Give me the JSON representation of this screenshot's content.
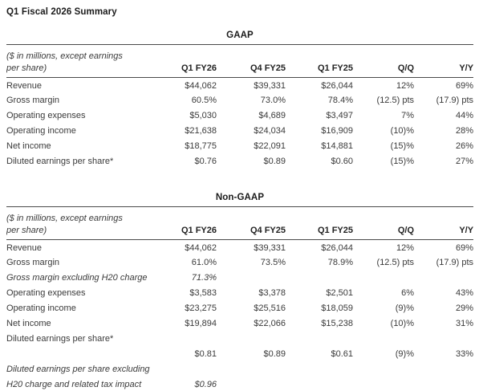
{
  "header": {
    "title": "Q1 Fiscal 2026 Summary"
  },
  "tables": [
    {
      "section": "GAAP",
      "note_line1": "($ in millions, except earnings",
      "note_line2": "per share)",
      "columns": [
        "Q1 FY26",
        "Q4 FY25",
        "Q1 FY25",
        "Q/Q",
        "Y/Y"
      ],
      "rows": [
        {
          "label": "Revenue",
          "values": [
            "$44,062",
            "$39,331",
            "$26,044",
            "12%",
            "69%"
          ]
        },
        {
          "label": "Gross margin",
          "values": [
            "60.5%",
            "73.0%",
            "78.4%",
            "(12.5) pts",
            "(17.9) pts"
          ]
        },
        {
          "label": "Operating expenses",
          "values": [
            "$5,030",
            "$4,689",
            "$3,497",
            "7%",
            "44%"
          ]
        },
        {
          "label": "Operating income",
          "values": [
            "$21,638",
            "$24,034",
            "$16,909",
            "(10)%",
            "28%"
          ]
        },
        {
          "label": "Net income",
          "values": [
            "$18,775",
            "$22,091",
            "$14,881",
            "(15)%",
            "26%"
          ]
        },
        {
          "label": "Diluted earnings per share*",
          "values": [
            "$0.76",
            "$0.89",
            "$0.60",
            "(15)%",
            "27%"
          ]
        }
      ]
    },
    {
      "section": "Non-GAAP",
      "note_line1": "($ in millions, except earnings",
      "note_line2": "per share)",
      "columns": [
        "Q1 FY26",
        "Q4 FY25",
        "Q1 FY25",
        "Q/Q",
        "Y/Y"
      ],
      "rows": [
        {
          "label": "Revenue",
          "values": [
            "$44,062",
            "$39,331",
            "$26,044",
            "12%",
            "69%"
          ]
        },
        {
          "label": "Gross margin",
          "values": [
            "61.0%",
            "73.5%",
            "78.9%",
            "(12.5) pts",
            "(17.9) pts"
          ]
        },
        {
          "label": "Gross margin excluding H20 charge",
          "values": [
            "71.3%",
            "",
            "",
            "",
            ""
          ]
        },
        {
          "label": "Operating expenses",
          "values": [
            "$3,583",
            "$3,378",
            "$2,501",
            "6%",
            "43%"
          ]
        },
        {
          "label": "Operating income",
          "values": [
            "$23,275",
            "$25,516",
            "$18,059",
            "(9)%",
            "29%"
          ]
        },
        {
          "label": "Net income",
          "values": [
            "$19,894",
            "$22,066",
            "$15,238",
            "(10)%",
            "31%"
          ]
        },
        {
          "label": "Diluted earnings per share*",
          "values": [
            "",
            "",
            "",
            "",
            ""
          ]
        },
        {
          "label": "",
          "values": [
            "$0.81",
            "$0.89",
            "$0.61",
            "(9)%",
            "33%"
          ]
        },
        {
          "label": "Diluted earnings per share excluding",
          "values": [
            "",
            "",
            "",
            "",
            ""
          ]
        },
        {
          "label": "H20 charge and related tax impact",
          "values": [
            "$0.96",
            "",
            "",
            "",
            ""
          ]
        }
      ]
    }
  ]
}
